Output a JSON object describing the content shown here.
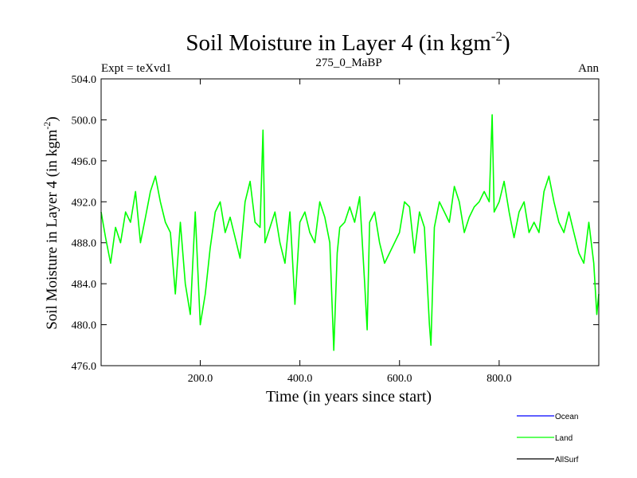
{
  "chart_data": {
    "type": "line",
    "title": "Soil Moisture in Layer 4 (in kgm",
    "title_superscript": "-2",
    "title_close": ")",
    "subtitle_left": "Expt = teXvd1",
    "subtitle_center": "275_0_MaBP",
    "subtitle_right": "Ann",
    "xlabel": "Time (in years since start)",
    "ylabel": "Soil Moisture in Layer 4 (in kgm",
    "ylabel_superscript": "-2",
    "ylabel_close": ")",
    "xlim": [
      1,
      1000
    ],
    "ylim": [
      476,
      504
    ],
    "xticks": [
      200,
      400,
      600,
      800
    ],
    "xtick_labels": [
      "200.0",
      "400.0",
      "600.0",
      "800.0"
    ],
    "yticks": [
      476,
      480,
      484,
      488,
      492,
      496,
      500,
      504
    ],
    "ytick_labels": [
      "476.0",
      "480.0",
      "484.0",
      "488.0",
      "492.0",
      "496.0",
      "500.0",
      "504.0"
    ],
    "legend_position": "bottom-right",
    "legend": [
      {
        "name": "Ocean",
        "color": "#0000ff"
      },
      {
        "name": "Land",
        "color": "#00ff00"
      },
      {
        "name": "AllSurf",
        "color": "#000000"
      }
    ],
    "series": [
      {
        "name": "Land",
        "color": "#00ff00",
        "x": [
          1,
          10,
          20,
          30,
          40,
          50,
          60,
          70,
          80,
          90,
          100,
          110,
          120,
          130,
          140,
          150,
          160,
          170,
          180,
          190,
          200,
          210,
          220,
          230,
          240,
          250,
          260,
          270,
          280,
          290,
          300,
          310,
          320,
          326,
          330,
          340,
          350,
          360,
          370,
          380,
          390,
          400,
          410,
          420,
          430,
          440,
          450,
          460,
          468,
          475,
          480,
          490,
          500,
          510,
          520,
          530,
          535,
          540,
          550,
          560,
          570,
          580,
          590,
          600,
          610,
          620,
          630,
          640,
          650,
          660,
          663,
          670,
          680,
          690,
          700,
          710,
          720,
          730,
          740,
          750,
          760,
          770,
          780,
          786,
          790,
          800,
          810,
          820,
          830,
          840,
          850,
          860,
          870,
          880,
          890,
          900,
          910,
          920,
          930,
          940,
          950,
          960,
          970,
          980,
          990,
          996,
          1000
        ],
        "values": [
          491,
          488.5,
          486,
          489.5,
          488,
          491,
          490,
          493,
          488,
          490.5,
          493,
          494.5,
          492,
          490,
          489,
          483,
          490,
          484,
          481,
          491,
          480,
          483,
          487.5,
          491,
          492,
          489,
          490.5,
          488.5,
          486.5,
          492,
          494,
          490,
          489.5,
          499,
          488,
          489.5,
          491,
          488,
          486,
          491,
          482,
          490,
          491,
          489,
          488,
          492,
          490.5,
          488,
          477.5,
          487,
          489.5,
          490,
          491.5,
          490,
          492.5,
          484,
          479.5,
          490,
          491,
          488,
          486,
          487,
          488,
          489,
          492,
          491.5,
          487,
          491,
          489.5,
          480,
          478,
          489.5,
          492,
          491,
          490,
          493.5,
          492,
          489,
          490.5,
          491.5,
          492,
          493,
          492,
          500.5,
          491,
          492,
          494,
          491,
          488.5,
          491,
          492,
          489,
          490,
          489,
          493,
          494.5,
          492,
          490,
          489,
          491,
          489,
          487,
          486,
          490,
          486,
          481,
          483
        ]
      }
    ]
  }
}
